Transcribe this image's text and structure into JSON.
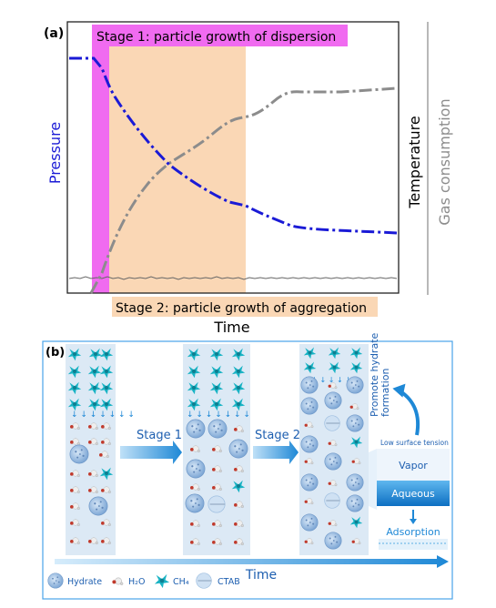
{
  "panel_a": {
    "label": "(a)",
    "stage1_title": "Stage 1: particle growth of dispersion",
    "stage2_title": "Stage 2: particle growth of aggregation",
    "left_axis_label": "Pressure",
    "right_axis_label": "Temperature",
    "right_axis_label2": "Gas consumption",
    "x_axis_label": "Time",
    "colors": {
      "stage1": "#f06bf0",
      "stage2": "#fad7b5",
      "pressure": "#1a1ad6",
      "gas": "#8c8c8c",
      "temperature": "#555555"
    }
  },
  "panel_b": {
    "label": "(b)",
    "stage1_arrow": "Stage 1",
    "stage2_arrow": "Stage 2",
    "promote_line1": "Promote hydrate",
    "promote_line2": "formation",
    "low_tension": "Low surface tension",
    "vapor": "Vapor",
    "aqueous": "Aqueous",
    "adsorption": "Adsorption",
    "time": "Time",
    "legend": {
      "hydrate": "Hydrate",
      "h2o": "H₂O",
      "ch4": "CH₄",
      "ctab": "CTAB"
    },
    "colors": {
      "frame": "#4aa3e8",
      "arrow": "#1e88d6",
      "hydrate": "#8fb4dc",
      "ch4": "#1bb8c6"
    }
  }
}
